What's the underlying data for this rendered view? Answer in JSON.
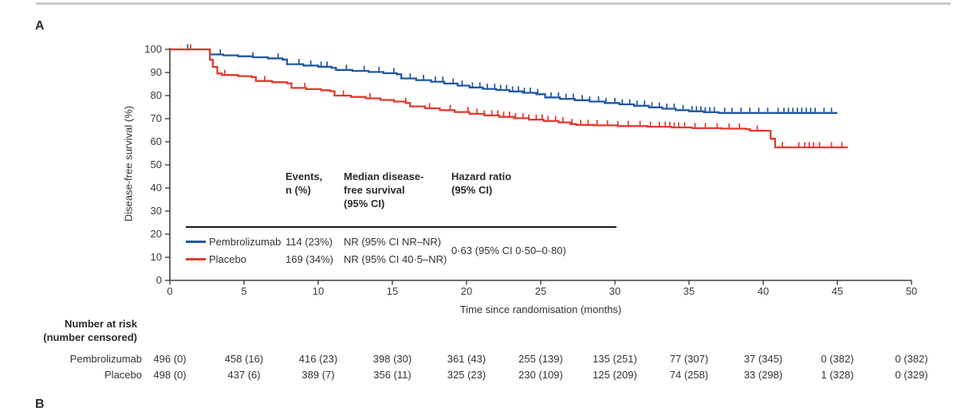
{
  "panel_labels": {
    "a": "A",
    "b": "B"
  },
  "colors": {
    "pembrolizumab": "#2256a3",
    "placebo": "#e2392d",
    "axis": "#404040",
    "divider": "#c9c9c9",
    "rule": "#1a1a1a"
  },
  "chart_data": {
    "type": "line",
    "subtype": "kaplan-meier-step",
    "title": "",
    "xlabel": "Time since randomisation (months)",
    "ylabel": "Disease-free survival (%)",
    "xlim": [
      0,
      50
    ],
    "ylim": [
      0,
      100
    ],
    "xticks": [
      0,
      5,
      10,
      15,
      20,
      25,
      30,
      35,
      40,
      45,
      50
    ],
    "yticks": [
      0,
      10,
      20,
      30,
      40,
      50,
      60,
      70,
      80,
      90,
      100
    ],
    "grid": false,
    "series": [
      {
        "name": "Pembrolizumab",
        "color": "#2256a3",
        "points": [
          [
            0,
            100
          ],
          [
            2.6,
            100
          ],
          [
            2.7,
            97.8
          ],
          [
            3.6,
            97.4
          ],
          [
            4.6,
            97.0
          ],
          [
            5.6,
            96.6
          ],
          [
            6.6,
            96.1
          ],
          [
            7.6,
            95.6
          ],
          [
            7.9,
            93.6
          ],
          [
            9.0,
            93.0
          ],
          [
            10.0,
            92.5
          ],
          [
            10.9,
            92.0
          ],
          [
            11.2,
            91.1
          ],
          [
            12.3,
            90.7
          ],
          [
            13.4,
            90.2
          ],
          [
            14.4,
            89.7
          ],
          [
            15.3,
            89.2
          ],
          [
            15.6,
            87.4
          ],
          [
            16.6,
            86.7
          ],
          [
            17.6,
            86.0
          ],
          [
            18.5,
            85.2
          ],
          [
            19.4,
            84.3
          ],
          [
            20.2,
            83.5
          ],
          [
            21.1,
            82.9
          ],
          [
            22.0,
            82.4
          ],
          [
            22.9,
            81.8
          ],
          [
            23.8,
            81.2
          ],
          [
            24.7,
            80.6
          ],
          [
            25.3,
            79.2
          ],
          [
            26.3,
            78.6
          ],
          [
            27.3,
            78.0
          ],
          [
            28.3,
            77.4
          ],
          [
            29.3,
            76.8
          ],
          [
            30.3,
            76.2
          ],
          [
            31.3,
            75.6
          ],
          [
            32.3,
            74.9
          ],
          [
            33.2,
            74.3
          ],
          [
            34.1,
            73.7
          ],
          [
            35.0,
            73.2
          ],
          [
            36.0,
            72.8
          ],
          [
            37.0,
            72.5
          ],
          [
            45.0,
            72.5
          ]
        ],
        "censor_marks": [
          1.2,
          3.4,
          5.6,
          7.3,
          8.7,
          9.5,
          10.2,
          10.6,
          11.9,
          13.1,
          14.1,
          15.1,
          16.2,
          17.1,
          17.9,
          18.4,
          19.1,
          19.7,
          20.4,
          20.9,
          21.4,
          21.9,
          22.3,
          22.7,
          23.1,
          23.5,
          23.9,
          24.3,
          24.8,
          25.7,
          26.2,
          26.7,
          27.2,
          27.8,
          28.3,
          28.9,
          29.4,
          30.0,
          30.5,
          31.0,
          31.5,
          32.0,
          32.5,
          33.0,
          33.5,
          34.0,
          34.6,
          35.2,
          35.5,
          35.8,
          36.1,
          36.4,
          36.7,
          37.4,
          37.9,
          38.5,
          39.1,
          39.7,
          40.3,
          41.0,
          41.4,
          41.7,
          42.0,
          42.3,
          42.6,
          42.9,
          43.2,
          43.5,
          44.1,
          44.6
        ]
      },
      {
        "name": "Placebo",
        "color": "#e2392d",
        "points": [
          [
            0,
            100
          ],
          [
            2.6,
            100
          ],
          [
            2.7,
            95.5
          ],
          [
            2.9,
            92.4
          ],
          [
            3.2,
            89.6
          ],
          [
            3.5,
            88.9
          ],
          [
            4.6,
            88.4
          ],
          [
            5.5,
            88.0
          ],
          [
            5.8,
            86.3
          ],
          [
            6.9,
            85.8
          ],
          [
            7.9,
            85.3
          ],
          [
            8.2,
            83.3
          ],
          [
            9.2,
            82.8
          ],
          [
            10.2,
            82.3
          ],
          [
            10.8,
            81.9
          ],
          [
            11.1,
            80.0
          ],
          [
            12.2,
            79.4
          ],
          [
            13.2,
            78.8
          ],
          [
            14.2,
            78.1
          ],
          [
            15.1,
            77.4
          ],
          [
            15.9,
            76.8
          ],
          [
            16.2,
            75.3
          ],
          [
            17.2,
            74.5
          ],
          [
            18.2,
            73.7
          ],
          [
            19.2,
            72.9
          ],
          [
            20.2,
            72.1
          ],
          [
            21.2,
            71.4
          ],
          [
            22.2,
            70.8
          ],
          [
            23.2,
            70.2
          ],
          [
            24.2,
            69.6
          ],
          [
            25.2,
            69.0
          ],
          [
            26.2,
            68.4
          ],
          [
            27.0,
            67.7
          ],
          [
            27.4,
            67.3
          ],
          [
            28.6,
            67.1
          ],
          [
            30.2,
            66.8
          ],
          [
            32.2,
            66.5
          ],
          [
            33.8,
            66.2
          ],
          [
            35.2,
            65.9
          ],
          [
            37.2,
            65.7
          ],
          [
            38.8,
            65.5
          ],
          [
            39.1,
            64.8
          ],
          [
            40.4,
            64.8
          ],
          [
            40.5,
            61.3
          ],
          [
            40.8,
            57.6
          ],
          [
            45.7,
            57.6
          ]
        ],
        "censor_marks": [
          1.4,
          3.7,
          6.4,
          9.1,
          11.7,
          13.5,
          15.9,
          17.5,
          18.9,
          20.1,
          20.7,
          21.2,
          21.7,
          22.1,
          22.5,
          22.9,
          23.3,
          23.8,
          24.2,
          24.7,
          25.1,
          25.5,
          26.0,
          26.5,
          27.1,
          27.7,
          28.2,
          28.8,
          29.5,
          30.2,
          30.9,
          31.7,
          32.4,
          33.0,
          33.4,
          33.7,
          34.0,
          34.3,
          34.7,
          35.4,
          36.1,
          36.9,
          37.7,
          38.4,
          39.6,
          41.3,
          42.4,
          42.8,
          43.1,
          43.4,
          43.8,
          44.6,
          45.3
        ]
      }
    ],
    "summary_table": {
      "headers": [
        [
          "Events,",
          "n (%)"
        ],
        [
          "Median disease-",
          "free survival",
          "(95% CI)"
        ],
        [
          "Hazard ratio",
          "(95% CI)"
        ]
      ],
      "rows": [
        {
          "name": "Pembrolizumab",
          "events": "114 (23%)",
          "median": "NR (95% CI NR–NR)"
        },
        {
          "name": "Placebo",
          "events": "169 (34%)",
          "median": "NR (95% CI 40·5–NR)"
        }
      ],
      "hazard_ratio": "0·63 (95% CI 0·50–0·80)"
    },
    "number_at_risk": {
      "title_line1": "Number at risk",
      "title_line2": "(number censored)",
      "times": [
        0,
        5,
        10,
        15,
        20,
        25,
        30,
        35,
        40,
        45,
        50
      ],
      "rows": [
        {
          "name": "Pembrolizumab",
          "values": [
            "496 (0)",
            "458 (16)",
            "416 (23)",
            "398 (30)",
            "361 (43)",
            "255 (139)",
            "135 (251)",
            "77 (307)",
            "37 (345)",
            "0 (382)",
            "0 (382)"
          ]
        },
        {
          "name": "Placebo",
          "values": [
            "498 (0)",
            "437 (6)",
            "389 (7)",
            "356 (11)",
            "325 (23)",
            "230 (109)",
            "125 (209)",
            "74 (258)",
            "33 (298)",
            "1 (328)",
            "0 (329)"
          ]
        }
      ]
    }
  }
}
